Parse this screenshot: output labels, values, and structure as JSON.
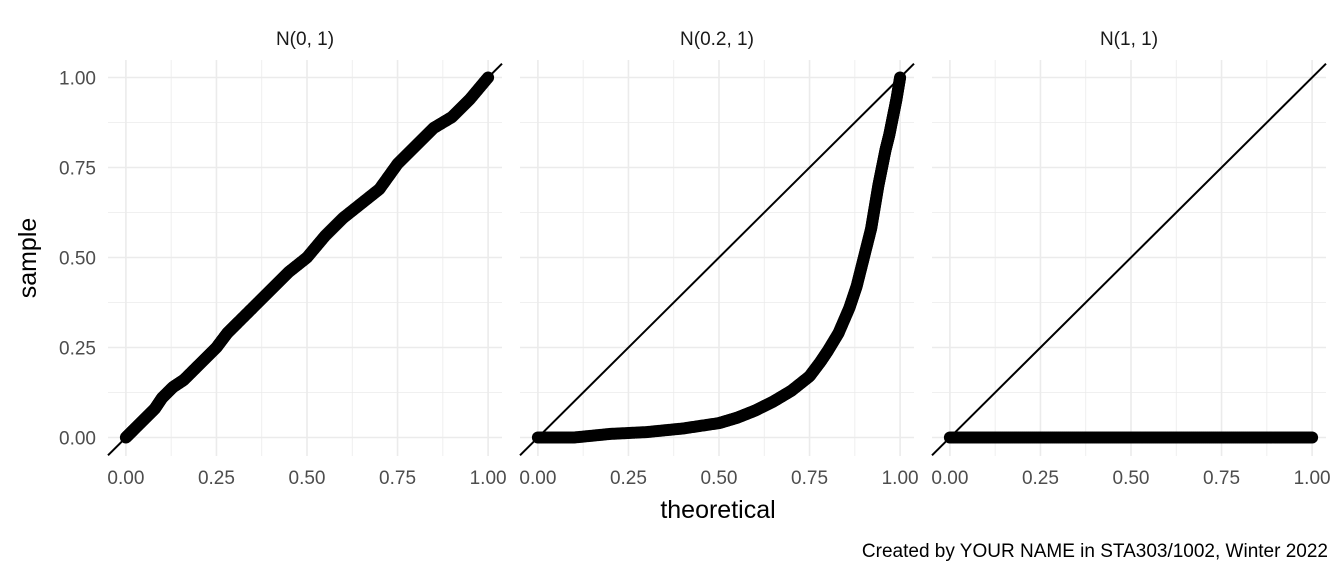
{
  "chart_data": {
    "type": "scatter",
    "caption": "Created by YOUR NAME in STA303/1002, Winter 2022",
    "xlabel": "theoretical",
    "ylabel": "sample",
    "xlim": [
      0,
      1
    ],
    "ylim": [
      0,
      1
    ],
    "x_ticks": [
      "0.00",
      "0.25",
      "0.50",
      "0.75",
      "1.00"
    ],
    "y_ticks": [
      "0.00",
      "0.25",
      "0.50",
      "0.75",
      "1.00"
    ],
    "grid": true,
    "reference_line": {
      "slope": 1,
      "intercept": 0
    },
    "point_color": "#000000",
    "panels": [
      {
        "title": "N(0, 1)",
        "points": [
          [
            0.0,
            0.0
          ],
          [
            0.02,
            0.02
          ],
          [
            0.05,
            0.05
          ],
          [
            0.08,
            0.08
          ],
          [
            0.1,
            0.11
          ],
          [
            0.13,
            0.14
          ],
          [
            0.16,
            0.16
          ],
          [
            0.2,
            0.2
          ],
          [
            0.25,
            0.25
          ],
          [
            0.28,
            0.29
          ],
          [
            0.31,
            0.32
          ],
          [
            0.35,
            0.36
          ],
          [
            0.4,
            0.41
          ],
          [
            0.45,
            0.46
          ],
          [
            0.5,
            0.5
          ],
          [
            0.55,
            0.56
          ],
          [
            0.6,
            0.61
          ],
          [
            0.65,
            0.65
          ],
          [
            0.7,
            0.69
          ],
          [
            0.75,
            0.76
          ],
          [
            0.8,
            0.81
          ],
          [
            0.85,
            0.86
          ],
          [
            0.9,
            0.89
          ],
          [
            0.95,
            0.94
          ],
          [
            1.0,
            1.0
          ]
        ]
      },
      {
        "title": "N(0.2, 1)",
        "points": [
          [
            0.0,
            0.0
          ],
          [
            0.1,
            0.0
          ],
          [
            0.2,
            0.01
          ],
          [
            0.3,
            0.015
          ],
          [
            0.4,
            0.025
          ],
          [
            0.5,
            0.04
          ],
          [
            0.55,
            0.055
          ],
          [
            0.6,
            0.075
          ],
          [
            0.65,
            0.1
          ],
          [
            0.7,
            0.13
          ],
          [
            0.75,
            0.17
          ],
          [
            0.78,
            0.21
          ],
          [
            0.8,
            0.24
          ],
          [
            0.83,
            0.29
          ],
          [
            0.86,
            0.36
          ],
          [
            0.88,
            0.42
          ],
          [
            0.9,
            0.5
          ],
          [
            0.92,
            0.58
          ],
          [
            0.93,
            0.64
          ],
          [
            0.94,
            0.7
          ],
          [
            0.95,
            0.75
          ],
          [
            0.96,
            0.8
          ],
          [
            0.97,
            0.84
          ],
          [
            0.98,
            0.89
          ],
          [
            0.99,
            0.94
          ],
          [
            1.0,
            1.0
          ]
        ]
      },
      {
        "title": "N(1, 1)",
        "points": [
          [
            0.0,
            0.0
          ],
          [
            0.1,
            0.0
          ],
          [
            0.2,
            0.0
          ],
          [
            0.3,
            0.0
          ],
          [
            0.4,
            0.0
          ],
          [
            0.5,
            0.0
          ],
          [
            0.6,
            0.0
          ],
          [
            0.7,
            0.0
          ],
          [
            0.8,
            0.0
          ],
          [
            0.9,
            0.0
          ],
          [
            1.0,
            0.0
          ]
        ]
      }
    ]
  }
}
